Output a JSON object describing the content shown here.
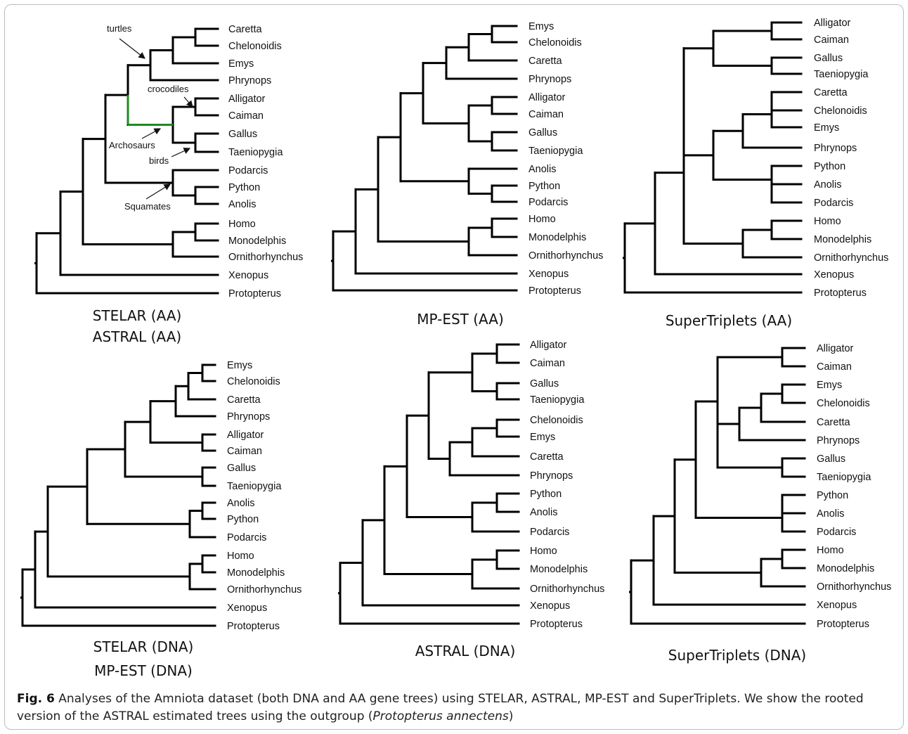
{
  "figure": {
    "label": "Fig. 6",
    "caption_main": "Analyses of the Amniota dataset (both DNA and AA gene trees) using STELAR, ASTRAL, MP-EST and SuperTriplets. We show the rooted version of the ASTRAL estimated trees using the outgroup (",
    "caption_italic": "Protopterus annectens",
    "caption_end": ")"
  },
  "panels": [
    {
      "id": "stelar-astral-aa",
      "titles": [
        "STELAR (AA)",
        "ASTRAL (AA)"
      ],
      "leaves": [
        "Caretta",
        "Chelonoidis",
        "Emys",
        "Phrynops",
        "Alligator",
        "Caiman",
        "Gallus",
        "Taeniopygia",
        "Podarcis",
        "Python",
        "Anolis",
        "Homo",
        "Monodelphis",
        "Ornithorhynchus",
        "Xenopus",
        "Protopterus"
      ],
      "annotations": [
        "turtles",
        "crocodiles",
        "Archosaurs",
        "birds",
        "Squamates"
      ]
    },
    {
      "id": "mp-est-aa",
      "titles": [
        "MP-EST (AA)"
      ],
      "leaves": [
        "Emys",
        "Chelonoidis",
        "Caretta",
        "Phrynops",
        "Alligator",
        "Caiman",
        "Gallus",
        "Taeniopygia",
        "Anolis",
        "Python",
        "Podarcis",
        "Homo",
        "Monodelphis",
        "Ornithorhynchus",
        "Xenopus",
        "Protopterus"
      ]
    },
    {
      "id": "supertriplets-aa",
      "titles": [
        "SuperTriplets (AA)"
      ],
      "leaves": [
        "Alligator",
        "Caiman",
        "Gallus",
        "Taeniopygia",
        "Caretta",
        "Chelonoidis",
        "Emys",
        "Phrynops",
        "Python",
        "Anolis",
        "Podarcis",
        "Homo",
        "Monodelphis",
        "Ornithorhynchus",
        "Xenopus",
        "Protopterus"
      ]
    },
    {
      "id": "stelar-mpest-dna",
      "titles": [
        "STELAR (DNA)",
        "MP-EST (DNA)"
      ],
      "leaves": [
        "Emys",
        "Chelonoidis",
        "Caretta",
        "Phrynops",
        "Alligator",
        "Caiman",
        "Gallus",
        "Taeniopygia",
        "Anolis",
        "Python",
        "Podarcis",
        "Homo",
        "Monodelphis",
        "Ornithorhynchus",
        "Xenopus",
        "Protopterus"
      ]
    },
    {
      "id": "astral-dna",
      "titles": [
        "ASTRAL (DNA)"
      ],
      "leaves": [
        "Alligator",
        "Caiman",
        "Gallus",
        "Taeniopygia",
        "Chelonoidis",
        "Emys",
        "Caretta",
        "Phrynops",
        "Python",
        "Anolis",
        "Podarcis",
        "Homo",
        "Monodelphis",
        "Ornithorhynchus",
        "Xenopus",
        "Protopterus"
      ]
    },
    {
      "id": "supertriplets-dna",
      "titles": [
        "SuperTriplets (DNA)"
      ],
      "leaves": [
        "Alligator",
        "Caiman",
        "Emys",
        "Chelonoidis",
        "Caretta",
        "Phrynops",
        "Gallus",
        "Taeniopygia",
        "Python",
        "Anolis",
        "Podarcis",
        "Homo",
        "Monodelphis",
        "Ornithorhynchus",
        "Xenopus",
        "Protopterus"
      ]
    }
  ],
  "colors": {
    "branch": "#000000",
    "highlight_branch": "#1f8a1f",
    "frame": "#bdbdbd"
  }
}
